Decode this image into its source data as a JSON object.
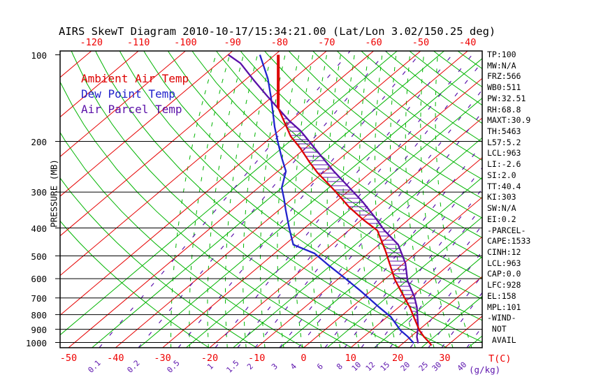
{
  "title": "AIRS SkewT Diagram 2010-10-17/15:34:21.00 (Lat/Lon 3.02/150.25 deg)",
  "colors": {
    "ambient": "#dd0000",
    "dew": "#2222cc",
    "parcel": "#5a10a8",
    "isotherm_red": "#e60000",
    "isotherm_green": "#00b400",
    "adiabat_green": "#00b400",
    "mixing_purple": "#5c13ad",
    "axis_black": "#000000",
    "label_red": "#ee0000"
  },
  "legend": [
    {
      "label": "Ambient Air Temp",
      "color": "#dd0000"
    },
    {
      "label": "Dew Point Temp",
      "color": "#2222cc"
    },
    {
      "label": "Air Parcel Temp",
      "color": "#5a10a8"
    }
  ],
  "axes": {
    "pressure_label": "PRESSURE (MB)",
    "pressure_ticks": [
      100,
      200,
      300,
      400,
      500,
      600,
      700,
      800,
      900,
      1000
    ],
    "temp_ticks_top": [
      -120,
      -110,
      -100,
      -90,
      -80,
      -70,
      -60,
      -50,
      -40
    ],
    "temp_ticks_bottom": [
      -50,
      -40,
      -30,
      -20,
      -10,
      0,
      10,
      20,
      30
    ],
    "temp_unit": "T(C)",
    "mixing_unit": "(g/kg)",
    "mixing_ticks": [
      {
        "value": "0.1",
        "x": 142
      },
      {
        "value": "0.2",
        "x": 198
      },
      {
        "value": "0.5",
        "x": 255
      },
      {
        "value": "1",
        "x": 308
      },
      {
        "value": "1.5",
        "x": 340
      },
      {
        "value": "2",
        "x": 365
      },
      {
        "value": "3",
        "x": 400
      },
      {
        "value": "4",
        "x": 427
      },
      {
        "value": "6",
        "x": 465
      },
      {
        "value": "8",
        "x": 493
      },
      {
        "value": "10",
        "x": 517
      },
      {
        "value": "12",
        "x": 537
      },
      {
        "value": "15",
        "x": 558
      },
      {
        "value": "20",
        "x": 587
      },
      {
        "value": "25",
        "x": 613
      },
      {
        "value": "30",
        "x": 632
      },
      {
        "value": "40",
        "x": 668
      }
    ]
  },
  "indices": [
    "TP:100",
    "MW:N/A",
    "FRZ:566",
    "WB0:511",
    "PW:32.51",
    "RH:68.8",
    "MAXT:30.9",
    "TH:5463",
    "L57:5.2",
    "LCL:963",
    "LI:-2.6",
    "SI:2.0",
    "TT:40.4",
    "KI:303",
    "SW:N/A",
    "EI:0.2",
    "-PARCEL-",
    "CAPE:1533",
    "CINH:12",
    "LCL:963",
    "CAP:0.0",
    "LFC:928",
    "EL:158",
    "MPL:101",
    "-WIND-",
    " NOT",
    " AVAIL"
  ],
  "chart_data": {
    "type": "line",
    "subtype": "skewt-logp",
    "title": "AIRS SkewT Diagram 2010-10-17/15:34:21.00 (Lat/Lon 3.02/150.25 deg)",
    "xlabel": "T(C)",
    "ylabel": "PRESSURE (MB)",
    "x_range_bottom_C": [
      -50,
      35
    ],
    "pressure_range_mb": [
      100,
      1050
    ],
    "grid": {
      "isotherms_red_every_C": 10,
      "isotherms_green_every_C": 5,
      "dry_adiabats": "green solid",
      "moist_adiabats": "green dashed",
      "mixing_ratio_lines": "purple dashed"
    },
    "series": [
      {
        "name": "Ambient Air Temp",
        "color": "#dd0000",
        "points_p_T": [
          [
            100,
            -79.3
          ],
          [
            153,
            -65.9
          ],
          [
            192,
            -56.1
          ],
          [
            211,
            -51.1
          ],
          [
            236,
            -45.6
          ],
          [
            257,
            -41.2
          ],
          [
            290,
            -34.3
          ],
          [
            339,
            -25.7
          ],
          [
            375,
            -19.5
          ],
          [
            408,
            -13.9
          ],
          [
            482,
            -6.9
          ],
          [
            603,
            2.1
          ],
          [
            694,
            8.5
          ],
          [
            755,
            12.4
          ],
          [
            814,
            15.6
          ],
          [
            909,
            20.3
          ],
          [
            955,
            22.8
          ],
          [
            1000,
            25.4
          ],
          [
            1023,
            26.6
          ]
        ]
      },
      {
        "name": "Dew Point Temp",
        "color": "#2222cc",
        "points_p_T": [
          [
            100,
            -83.2
          ],
          [
            121,
            -75.5
          ],
          [
            141,
            -70.0
          ],
          [
            178,
            -61.9
          ],
          [
            203,
            -57.0
          ],
          [
            229,
            -52.4
          ],
          [
            254,
            -48.3
          ],
          [
            290,
            -45.0
          ],
          [
            317,
            -41.7
          ],
          [
            346,
            -38.6
          ],
          [
            403,
            -33.0
          ],
          [
            457,
            -28.2
          ],
          [
            490,
            -21.5
          ],
          [
            539,
            -15.5
          ],
          [
            589,
            -9.7
          ],
          [
            661,
            -2.3
          ],
          [
            755,
            5.9
          ],
          [
            814,
            10.7
          ],
          [
            909,
            16.3
          ],
          [
            955,
            19.4
          ],
          [
            1006,
            22.3
          ]
        ]
      },
      {
        "name": "Air Parcel Temp",
        "color": "#5a10a8",
        "points_p_T": [
          [
            100,
            -89.9
          ],
          [
            107,
            -85.2
          ],
          [
            123,
            -77.9
          ],
          [
            139,
            -71.3
          ],
          [
            153,
            -66.0
          ],
          [
            169,
            -60.5
          ],
          [
            184,
            -55.3
          ],
          [
            218,
            -46.3
          ],
          [
            254,
            -38.1
          ],
          [
            290,
            -30.6
          ],
          [
            326,
            -24.0
          ],
          [
            371,
            -17.2
          ],
          [
            408,
            -12.4
          ],
          [
            457,
            -5.9
          ],
          [
            530,
            0.3
          ],
          [
            610,
            5.2
          ],
          [
            694,
            10.7
          ],
          [
            755,
            13.9
          ],
          [
            814,
            16.4
          ],
          [
            883,
            19.1
          ],
          [
            955,
            21.3
          ],
          [
            1006,
            23.2
          ]
        ]
      }
    ],
    "cape_hatch_between": [
      "Ambient Air Temp",
      "Air Parcel Temp"
    ],
    "tropopause_marker_p_range": [
      100,
      153
    ]
  }
}
